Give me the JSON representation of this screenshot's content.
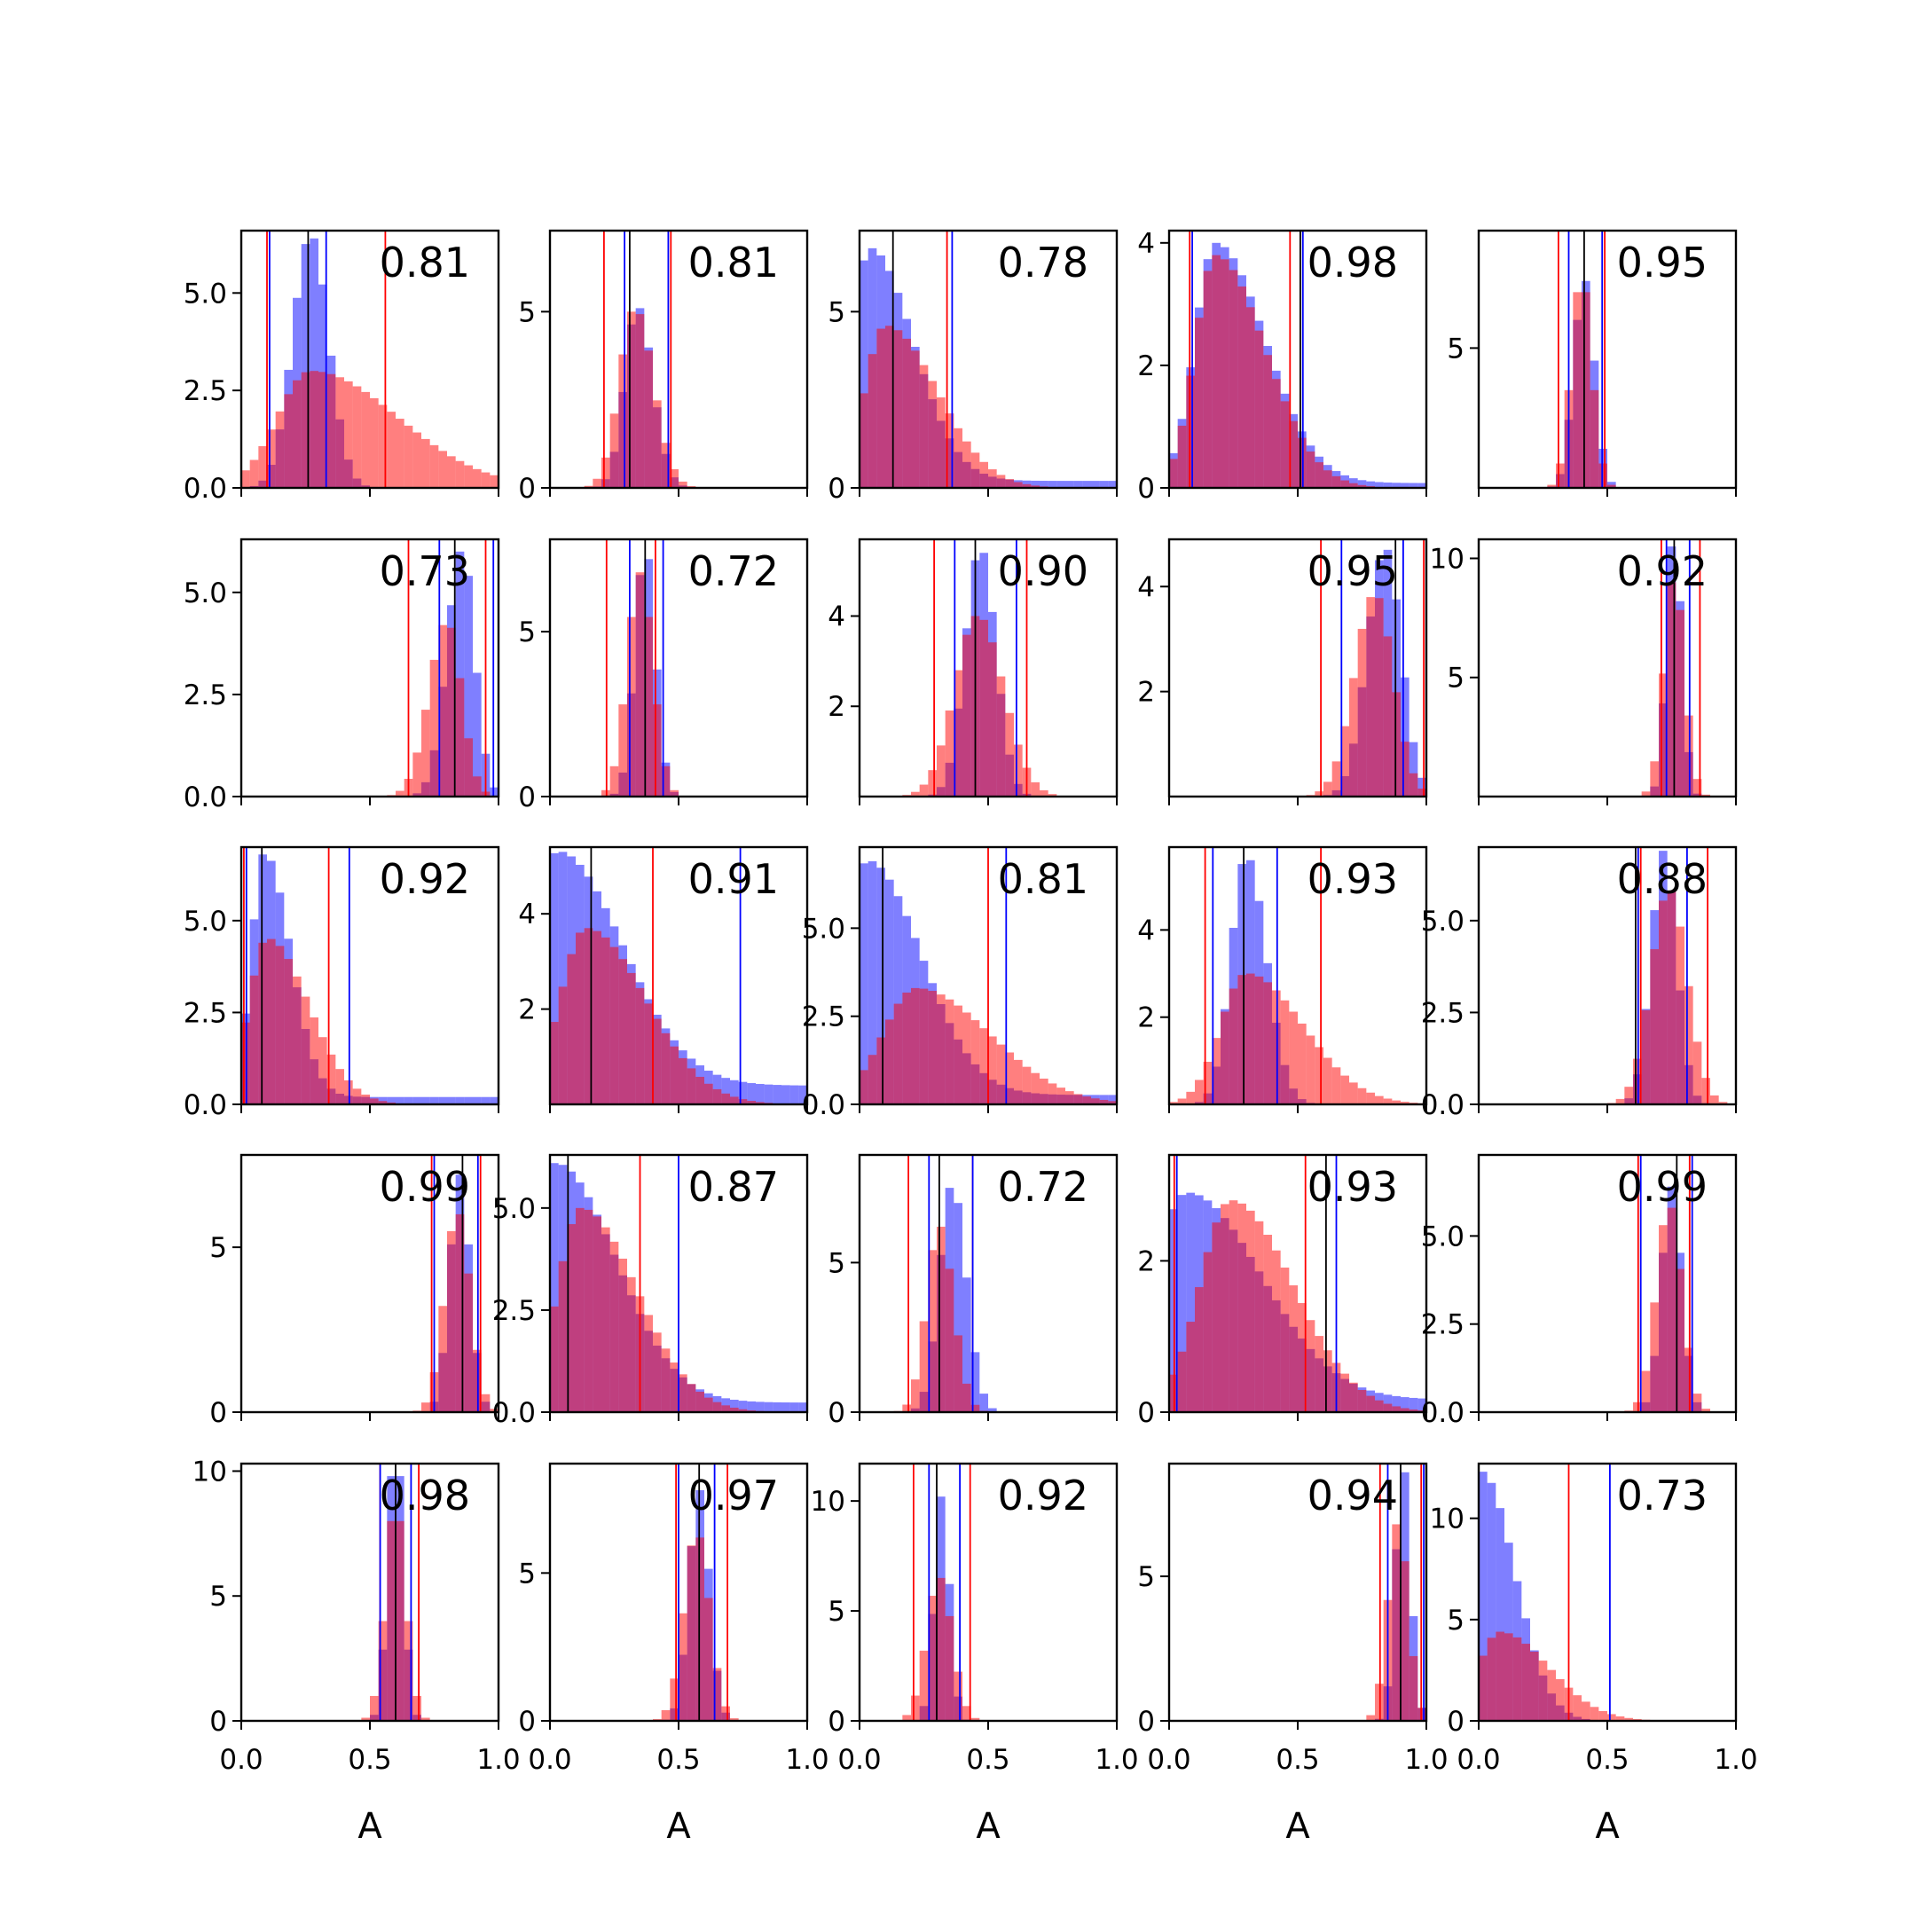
{
  "chart_data": {
    "type": "histogram-grid",
    "rows": 5,
    "cols": 5,
    "xlim": [
      0.0,
      1.0
    ],
    "xticks": [
      "0.0",
      "0.5",
      "1.0"
    ],
    "xlabel": "A",
    "colors": {
      "blue": "#0000ff",
      "red": "#ff0000",
      "black": "#000000"
    },
    "bar_alpha": 0.5,
    "panels": [
      {
        "value": "0.81",
        "ylim": [
          0,
          6.6
        ],
        "yticks": [
          "0.0",
          "2.5",
          "5.0"
        ],
        "ytick_values": [
          0,
          2.5,
          5
        ],
        "blue": {
          "mean": 0.27,
          "sd": 0.07,
          "skew": 1.0,
          "tail": 0.0,
          "peak": 6.4,
          "lines": [
            0.11,
            0.33
          ]
        },
        "red": {
          "mean": 0.27,
          "sd": 0.13,
          "skew": 2.6,
          "tail": 0.0,
          "peak": 3.0,
          "lines": [
            0.1,
            0.56
          ]
        },
        "black": 0.26
      },
      {
        "value": "0.81",
        "ylim": [
          0,
          7.3
        ],
        "yticks": [
          "0",
          "5"
        ],
        "ytick_values": [
          0,
          5
        ],
        "blue": {
          "mean": 0.34,
          "sd": 0.05,
          "skew": 1.2,
          "tail": 0.0,
          "peak": 5.1,
          "lines": [
            0.29,
            0.46
          ]
        },
        "red": {
          "mean": 0.33,
          "sd": 0.06,
          "skew": 1.2,
          "tail": 0.0,
          "peak": 5.0,
          "lines": [
            0.21,
            0.47
          ]
        },
        "black": 0.31
      },
      {
        "value": "0.78",
        "ylim": [
          0,
          7.3
        ],
        "yticks": [
          "0",
          "5"
        ],
        "ytick_values": [
          0,
          5
        ],
        "blue": {
          "mean": 0.04,
          "sd": 0.07,
          "skew": 2.4,
          "tail": 0.03,
          "peak": 6.8,
          "lines": [
            0.36
          ]
        },
        "red": {
          "mean": 0.1,
          "sd": 0.08,
          "skew": 2.5,
          "tail": 0.0,
          "peak": 4.6,
          "lines": [
            0.34
          ]
        },
        "black": 0.13
      },
      {
        "value": "0.98",
        "ylim": [
          0,
          4.2
        ],
        "yticks": [
          "0",
          "2",
          "4"
        ],
        "ytick_values": [
          0,
          2,
          4
        ],
        "blue": {
          "mean": 0.18,
          "sd": 0.08,
          "skew": 2.4,
          "tail": 0.02,
          "peak": 4.0,
          "lines": [
            0.09,
            0.52
          ]
        },
        "red": {
          "mean": 0.18,
          "sd": 0.08,
          "skew": 2.4,
          "tail": 0.0,
          "peak": 3.8,
          "lines": [
            0.08,
            0.47
          ]
        },
        "black": 0.51
      },
      {
        "value": "0.95",
        "ylim": [
          0,
          9.2
        ],
        "yticks": [
          "5"
        ],
        "ytick_values": [
          5
        ],
        "blue": {
          "mean": 0.41,
          "sd": 0.04,
          "skew": 1.0,
          "tail": 0.0,
          "peak": 7.4,
          "lines": [
            0.35,
            0.48
          ]
        },
        "red": {
          "mean": 0.4,
          "sd": 0.04,
          "skew": 1.0,
          "tail": 0.0,
          "peak": 7.0,
          "lines": [
            0.31,
            0.49
          ]
        },
        "black": 0.41
      },
      {
        "value": "0.73",
        "ylim": [
          0,
          6.3
        ],
        "yticks": [
          "0.0",
          "2.5",
          "5.0"
        ],
        "ytick_values": [
          0,
          2.5,
          5
        ],
        "blue": {
          "mean": 0.86,
          "sd": 0.06,
          "skew": 0.8,
          "tail": 0.0,
          "peak": 6.0,
          "lines": [
            0.77,
            0.98
          ]
        },
        "red": {
          "mean": 0.8,
          "sd": 0.07,
          "skew": 0.8,
          "tail": 0.0,
          "peak": 4.2,
          "lines": [
            0.65,
            0.95
          ]
        },
        "black": 0.83
      },
      {
        "value": "0.72",
        "ylim": [
          0,
          7.8
        ],
        "yticks": [
          "0",
          "5"
        ],
        "ytick_values": [
          0,
          5
        ],
        "blue": {
          "mean": 0.37,
          "sd": 0.04,
          "skew": 1.0,
          "tail": 0.0,
          "peak": 7.2,
          "lines": [
            0.31,
            0.44
          ]
        },
        "red": {
          "mean": 0.35,
          "sd": 0.05,
          "skew": 1.0,
          "tail": 0.0,
          "peak": 6.8,
          "lines": [
            0.22,
            0.41
          ]
        },
        "black": 0.37
      },
      {
        "value": "0.90",
        "ylim": [
          0,
          5.7
        ],
        "yticks": [
          "2",
          "4"
        ],
        "ytick_values": [
          2,
          4
        ],
        "blue": {
          "mean": 0.47,
          "sd": 0.06,
          "skew": 1.0,
          "tail": 0.0,
          "peak": 5.4,
          "lines": [
            0.37,
            0.61
          ]
        },
        "red": {
          "mean": 0.46,
          "sd": 0.09,
          "skew": 1.1,
          "tail": 0.0,
          "peak": 4.0,
          "lines": [
            0.29,
            0.65
          ]
        },
        "black": 0.45
      },
      {
        "value": "0.95",
        "ylim": [
          0,
          4.9
        ],
        "yticks": [
          "2",
          "4"
        ],
        "ytick_values": [
          2,
          4
        ],
        "blue": {
          "mean": 0.84,
          "sd": 0.07,
          "skew": 0.9,
          "tail": 0.0,
          "peak": 4.7,
          "lines": [
            0.67,
            0.91
          ]
        },
        "red": {
          "mean": 0.8,
          "sd": 0.08,
          "skew": 0.9,
          "tail": 0.0,
          "peak": 3.8,
          "lines": [
            0.59,
            0.99
          ]
        },
        "black": 0.88
      },
      {
        "value": "0.92",
        "ylim": [
          0,
          10.8
        ],
        "yticks": [
          "5",
          "10"
        ],
        "ytick_values": [
          5,
          10
        ],
        "blue": {
          "mean": 0.76,
          "sd": 0.03,
          "skew": 1.0,
          "tail": 0.0,
          "peak": 10.5,
          "lines": [
            0.73,
            0.82
          ]
        },
        "red": {
          "mean": 0.76,
          "sd": 0.04,
          "skew": 1.0,
          "tail": 0.0,
          "peak": 9.0,
          "lines": [
            0.71,
            0.86
          ]
        },
        "black": 0.76
      },
      {
        "value": "0.92",
        "ylim": [
          0,
          7.0
        ],
        "yticks": [
          "0.0",
          "2.5",
          "5.0"
        ],
        "ytick_values": [
          0,
          2.5,
          5
        ],
        "blue": {
          "mean": 0.09,
          "sd": 0.05,
          "skew": 2.0,
          "tail": 0.03,
          "peak": 6.8,
          "lines": [
            0.02,
            0.42
          ]
        },
        "red": {
          "mean": 0.1,
          "sd": 0.07,
          "skew": 2.3,
          "tail": 0.0,
          "peak": 4.5,
          "lines": [
            0.01,
            0.34
          ]
        },
        "black": 0.08
      },
      {
        "value": "0.91",
        "ylim": [
          0,
          5.4
        ],
        "yticks": [
          "2",
          "4"
        ],
        "ytick_values": [
          2,
          4
        ],
        "blue": {
          "mean": 0.03,
          "sd": 0.1,
          "skew": 2.5,
          "tail": 0.08,
          "peak": 5.3,
          "lines": [
            0.74
          ]
        },
        "red": {
          "mean": 0.14,
          "sd": 0.1,
          "skew": 2.3,
          "tail": 0.0,
          "peak": 3.7,
          "lines": [
            0.4
          ]
        },
        "black": 0.16
      },
      {
        "value": "0.81",
        "ylim": [
          0,
          7.3
        ],
        "yticks": [
          "0.0",
          "2.5",
          "5.0"
        ],
        "ytick_values": [
          0,
          2.5,
          5
        ],
        "blue": {
          "mean": 0.03,
          "sd": 0.08,
          "skew": 2.6,
          "tail": 0.04,
          "peak": 6.9,
          "lines": [
            0.57
          ]
        },
        "red": {
          "mean": 0.22,
          "sd": 0.13,
          "skew": 2.2,
          "tail": 0.0,
          "peak": 3.3,
          "lines": [
            0.5
          ]
        },
        "black": 0.09
      },
      {
        "value": "0.93",
        "ylim": [
          0,
          5.9
        ],
        "yticks": [
          "2",
          "4"
        ],
        "ytick_values": [
          2,
          4
        ],
        "blue": {
          "mean": 0.3,
          "sd": 0.06,
          "skew": 1.3,
          "tail": 0.0,
          "peak": 5.6,
          "lines": [
            0.17,
            0.42
          ]
        },
        "red": {
          "mean": 0.3,
          "sd": 0.1,
          "skew": 2.2,
          "tail": 0.0,
          "peak": 3.0,
          "lines": [
            0.14,
            0.59
          ]
        },
        "black": 0.29
      },
      {
        "value": "0.88",
        "ylim": [
          0,
          7.0
        ],
        "yticks": [
          "0.0",
          "2.5",
          "5.0"
        ],
        "ytick_values": [
          0,
          2.5,
          5
        ],
        "blue": {
          "mean": 0.72,
          "sd": 0.05,
          "skew": 1.0,
          "tail": 0.0,
          "peak": 6.9,
          "lines": [
            0.62,
            0.81
          ]
        },
        "red": {
          "mean": 0.74,
          "sd": 0.07,
          "skew": 1.0,
          "tail": 0.0,
          "peak": 5.8,
          "lines": [
            0.63,
            0.89
          ]
        },
        "black": 0.61
      },
      {
        "value": "0.99",
        "ylim": [
          0,
          7.8
        ],
        "yticks": [
          "0",
          "5"
        ],
        "ytick_values": [
          0,
          5
        ],
        "blue": {
          "mean": 0.85,
          "sd": 0.04,
          "skew": 1.0,
          "tail": 0.0,
          "peak": 7.2,
          "lines": [
            0.75,
            0.92
          ]
        },
        "red": {
          "mean": 0.84,
          "sd": 0.05,
          "skew": 1.0,
          "tail": 0.0,
          "peak": 6.0,
          "lines": [
            0.74,
            0.93
          ]
        },
        "black": 0.86
      },
      {
        "value": "0.87",
        "ylim": [
          0,
          6.3
        ],
        "yticks": [
          "0.0",
          "2.5",
          "5.0"
        ],
        "ytick_values": [
          0,
          2.5,
          5
        ],
        "blue": {
          "mean": 0.02,
          "sd": 0.09,
          "skew": 2.6,
          "tail": 0.04,
          "peak": 6.1,
          "lines": [
            0.5
          ]
        },
        "red": {
          "mean": 0.12,
          "sd": 0.09,
          "skew": 2.4,
          "tail": 0.0,
          "peak": 5.0,
          "lines": [
            0.35
          ]
        },
        "black": 0.07
      },
      {
        "value": "0.72",
        "ylim": [
          0,
          8.6
        ],
        "yticks": [
          "0",
          "5"
        ],
        "ytick_values": [
          0,
          5
        ],
        "blue": {
          "mean": 0.36,
          "sd": 0.05,
          "skew": 1.1,
          "tail": 0.0,
          "peak": 7.5,
          "lines": [
            0.27,
            0.44
          ]
        },
        "red": {
          "mean": 0.31,
          "sd": 0.05,
          "skew": 1.1,
          "tail": 0.0,
          "peak": 6.2,
          "lines": [
            0.19,
            0.44
          ]
        },
        "black": 0.31
      },
      {
        "value": "0.93",
        "ylim": [
          0,
          3.4
        ],
        "yticks": [
          "0",
          "2"
        ],
        "ytick_values": [
          0,
          2
        ],
        "blue": {
          "mean": 0.07,
          "sd": 0.13,
          "skew": 2.2,
          "tail": 0.06,
          "peak": 2.9,
          "lines": [
            0.03,
            0.65
          ]
        },
        "red": {
          "mean": 0.24,
          "sd": 0.12,
          "skew": 2.0,
          "tail": 0.0,
          "peak": 2.8,
          "lines": [
            0.02,
            0.53
          ]
        },
        "black": 0.61
      },
      {
        "value": "0.99",
        "ylim": [
          0,
          7.3
        ],
        "yticks": [
          "0.0",
          "2.5",
          "5.0"
        ],
        "ytick_values": [
          0,
          2.5,
          5
        ],
        "blue": {
          "mean": 0.75,
          "sd": 0.04,
          "skew": 1.0,
          "tail": 0.0,
          "peak": 6.4,
          "lines": [
            0.63,
            0.83
          ]
        },
        "red": {
          "mean": 0.74,
          "sd": 0.05,
          "skew": 1.0,
          "tail": 0.0,
          "peak": 5.8,
          "lines": [
            0.62,
            0.82
          ]
        },
        "black": 0.77
      },
      {
        "value": "0.98",
        "ylim": [
          0,
          10.3
        ],
        "yticks": [
          "0",
          "5",
          "10"
        ],
        "ytick_values": [
          0,
          5,
          10
        ],
        "blue": {
          "mean": 0.6,
          "sd": 0.03,
          "skew": 1.0,
          "tail": 0.0,
          "peak": 9.8,
          "lines": [
            0.54,
            0.66
          ]
        },
        "red": {
          "mean": 0.6,
          "sd": 0.04,
          "skew": 1.0,
          "tail": 0.0,
          "peak": 8.0,
          "lines": [
            0.54,
            0.69
          ]
        },
        "black": 0.6
      },
      {
        "value": "0.97",
        "ylim": [
          0,
          8.7
        ],
        "yticks": [
          "0",
          "5"
        ],
        "ytick_values": [
          0,
          5
        ],
        "blue": {
          "mean": 0.58,
          "sd": 0.04,
          "skew": 1.0,
          "tail": 0.0,
          "peak": 7.8,
          "lines": [
            0.5,
            0.64
          ]
        },
        "red": {
          "mean": 0.57,
          "sd": 0.05,
          "skew": 1.0,
          "tail": 0.0,
          "peak": 6.2,
          "lines": [
            0.49,
            0.69
          ]
        },
        "black": 0.58
      },
      {
        "value": "0.92",
        "ylim": [
          0,
          11.7
        ],
        "yticks": [
          "0",
          "5",
          "10"
        ],
        "ytick_values": [
          0,
          5,
          10
        ],
        "blue": {
          "mean": 0.32,
          "sd": 0.03,
          "skew": 1.0,
          "tail": 0.0,
          "peak": 10.2,
          "lines": [
            0.27,
            0.39
          ]
        },
        "red": {
          "mean": 0.31,
          "sd": 0.05,
          "skew": 1.0,
          "tail": 0.0,
          "peak": 6.5,
          "lines": [
            0.21,
            0.43
          ]
        },
        "black": 0.3
      },
      {
        "value": "0.94",
        "ylim": [
          0,
          8.9
        ],
        "yticks": [
          "0",
          "5"
        ],
        "ytick_values": [
          0,
          5
        ],
        "blue": {
          "mean": 0.91,
          "sd": 0.03,
          "skew": 1.0,
          "tail": 0.0,
          "peak": 8.6,
          "lines": [
            0.85,
            0.99
          ]
        },
        "red": {
          "mean": 0.89,
          "sd": 0.04,
          "skew": 1.0,
          "tail": 0.0,
          "peak": 6.8,
          "lines": [
            0.82,
            0.98
          ]
        },
        "black": 0.9
      },
      {
        "value": "0.73",
        "ylim": [
          0,
          12.7
        ],
        "yticks": [
          "0",
          "5",
          "10"
        ],
        "ytick_values": [
          0,
          5,
          10
        ],
        "blue": {
          "mean": 0.01,
          "sd": 0.05,
          "skew": 2.6,
          "tail": 0.0,
          "peak": 12.3,
          "lines": [
            0.51
          ]
        },
        "red": {
          "mean": 0.08,
          "sd": 0.08,
          "skew": 2.4,
          "tail": 0.0,
          "peak": 4.4,
          "lines": [
            0.35
          ]
        },
        "black": null
      }
    ]
  }
}
